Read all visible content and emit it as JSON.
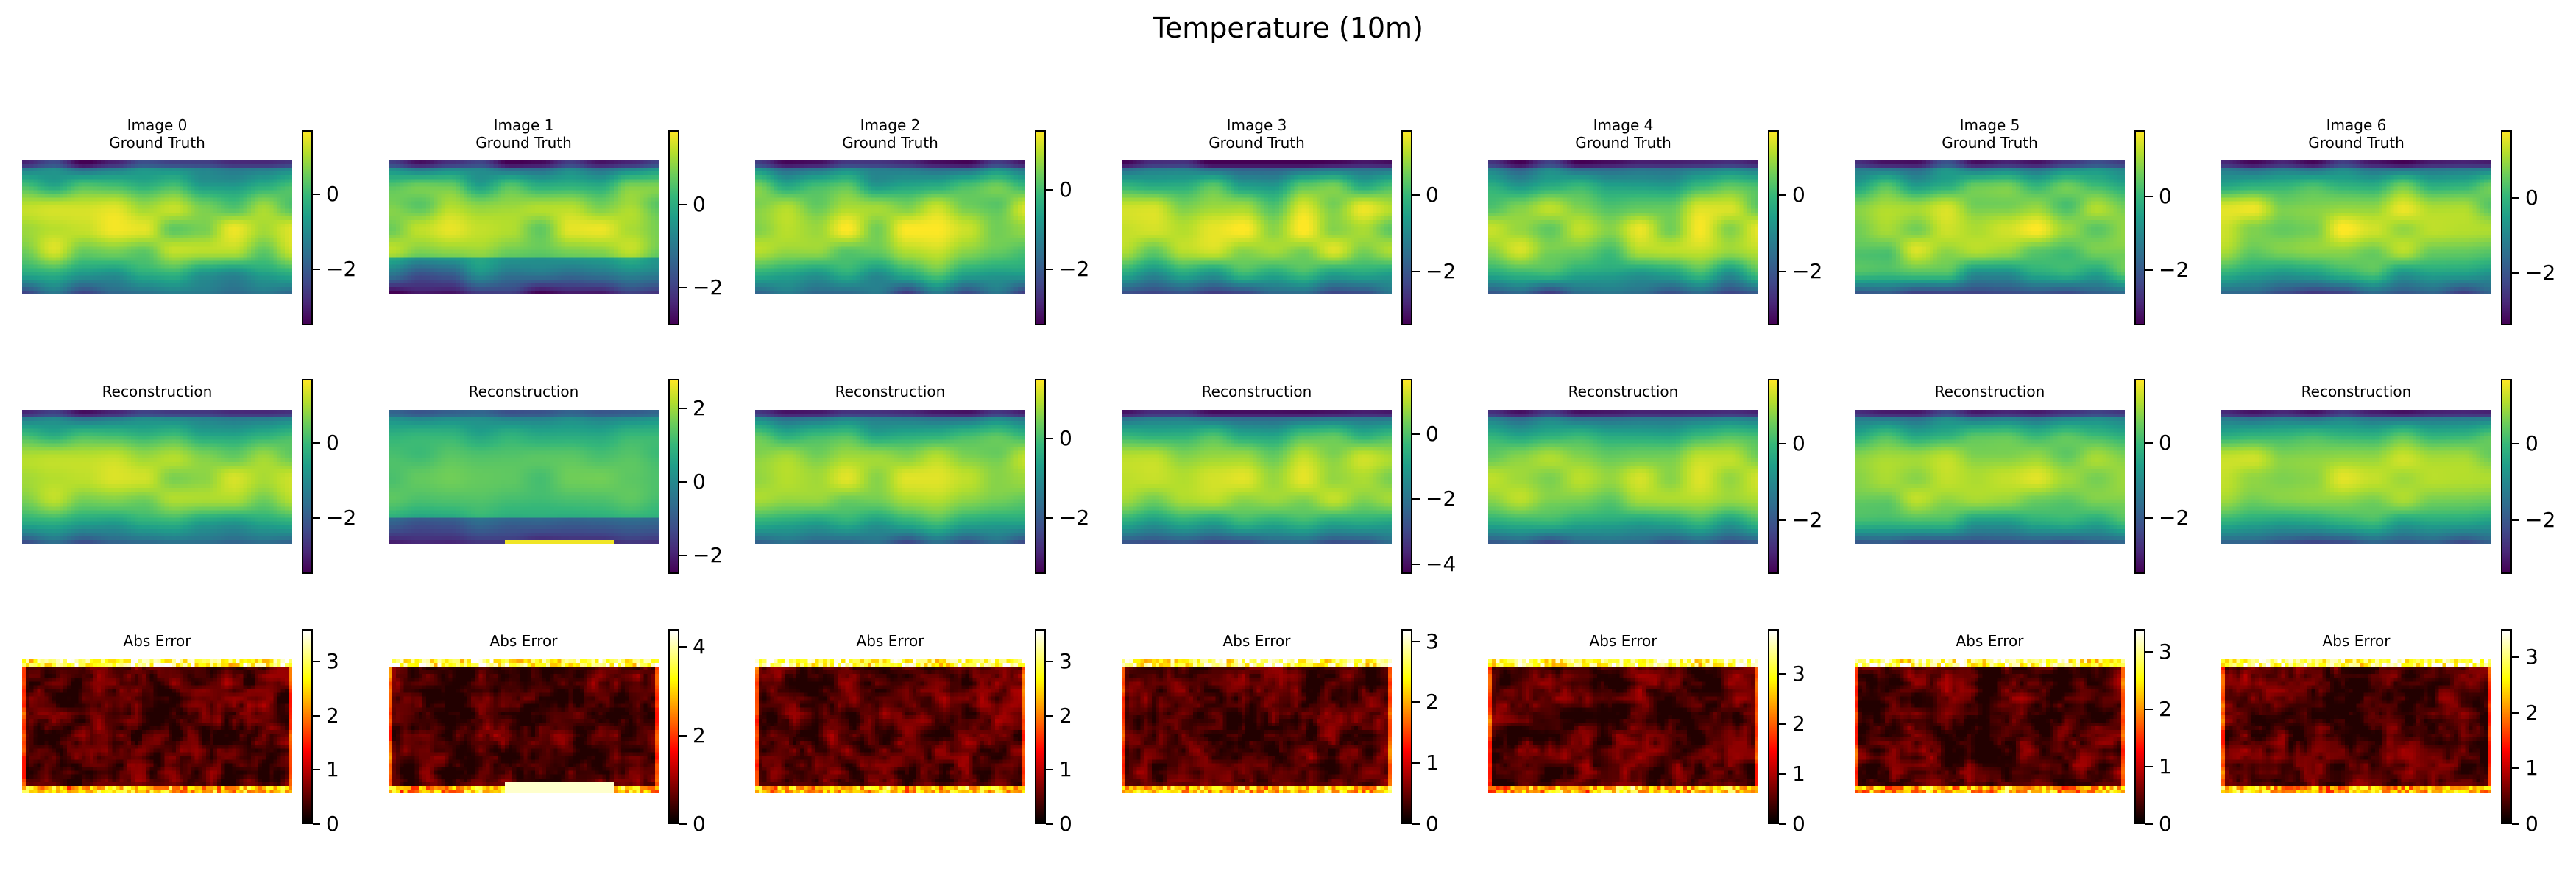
{
  "figure": {
    "title": "Temperature (10m)"
  },
  "rows": [
    {
      "key": "gt",
      "colormap": "viridis"
    },
    {
      "key": "recon",
      "colormap": "viridis"
    },
    {
      "key": "err",
      "colormap": "hot"
    }
  ],
  "panels": [
    {
      "titles": [
        [
          "Image 0",
          "Ground Truth"
        ],
        [
          "Image 1",
          "Ground Truth"
        ],
        [
          "Image 2",
          "Ground Truth"
        ],
        [
          "Image 3",
          "Ground Truth"
        ],
        [
          "Image 4",
          "Ground Truth"
        ],
        [
          "Image 5",
          "Ground Truth"
        ],
        [
          "Image 6",
          "Ground Truth"
        ]
      ]
    },
    {
      "titles": [
        [
          "Reconstruction"
        ],
        [
          "Reconstruction"
        ],
        [
          "Reconstruction"
        ],
        [
          "Reconstruction"
        ],
        [
          "Reconstruction"
        ],
        [
          "Reconstruction"
        ],
        [
          "Reconstruction"
        ]
      ]
    },
    {
      "titles": [
        [
          "Abs Error"
        ],
        [
          "Abs Error"
        ],
        [
          "Abs Error"
        ],
        [
          "Abs Error"
        ],
        [
          "Abs Error"
        ],
        [
          "Abs Error"
        ],
        [
          "Abs Error"
        ]
      ]
    }
  ],
  "chart_data": {
    "type": "heatmap",
    "title": "Temperature (10m)",
    "grid": false,
    "columns": 7,
    "colorbar_ranges": [
      [
        [
          -3.5,
          1.7
        ],
        [
          -2.9,
          1.8
        ],
        [
          -3.4,
          1.5
        ],
        [
          -3.4,
          1.7
        ],
        [
          -3.4,
          1.7
        ],
        [
          -3.5,
          1.8
        ],
        [
          -3.4,
          1.8
        ]
      ],
      [
        [
          -3.5,
          1.7
        ],
        [
          -2.5,
          2.8
        ],
        [
          -3.4,
          1.5
        ],
        [
          -4.3,
          1.7
        ],
        [
          -3.4,
          1.7
        ],
        [
          -3.5,
          1.7
        ],
        [
          -3.4,
          1.7
        ]
      ],
      [
        [
          0,
          3.6
        ],
        [
          0,
          4.4
        ],
        [
          0,
          3.6
        ],
        [
          0,
          3.2
        ],
        [
          0,
          3.9
        ],
        [
          0,
          3.4
        ],
        [
          0,
          3.5
        ]
      ]
    ],
    "colorbar_ticks": [
      [
        [
          -2,
          0
        ],
        [
          -2,
          0
        ],
        [
          -2,
          0
        ],
        [
          -2,
          0
        ],
        [
          -2,
          0
        ],
        [
          -2,
          0
        ],
        [
          -2,
          0
        ]
      ],
      [
        [
          -2,
          0
        ],
        [
          -2,
          0,
          2
        ],
        [
          -2,
          0
        ],
        [
          -4,
          -2,
          0
        ],
        [
          -2,
          0
        ],
        [
          -2,
          0
        ],
        [
          -2,
          0
        ]
      ],
      [
        [
          0,
          1,
          2,
          3
        ],
        [
          0,
          2,
          4
        ],
        [
          0,
          1,
          2,
          3
        ],
        [
          0,
          1,
          2,
          3
        ],
        [
          0,
          1,
          2,
          3
        ],
        [
          0,
          1,
          2,
          3
        ],
        [
          0,
          1,
          2,
          3
        ]
      ]
    ]
  }
}
